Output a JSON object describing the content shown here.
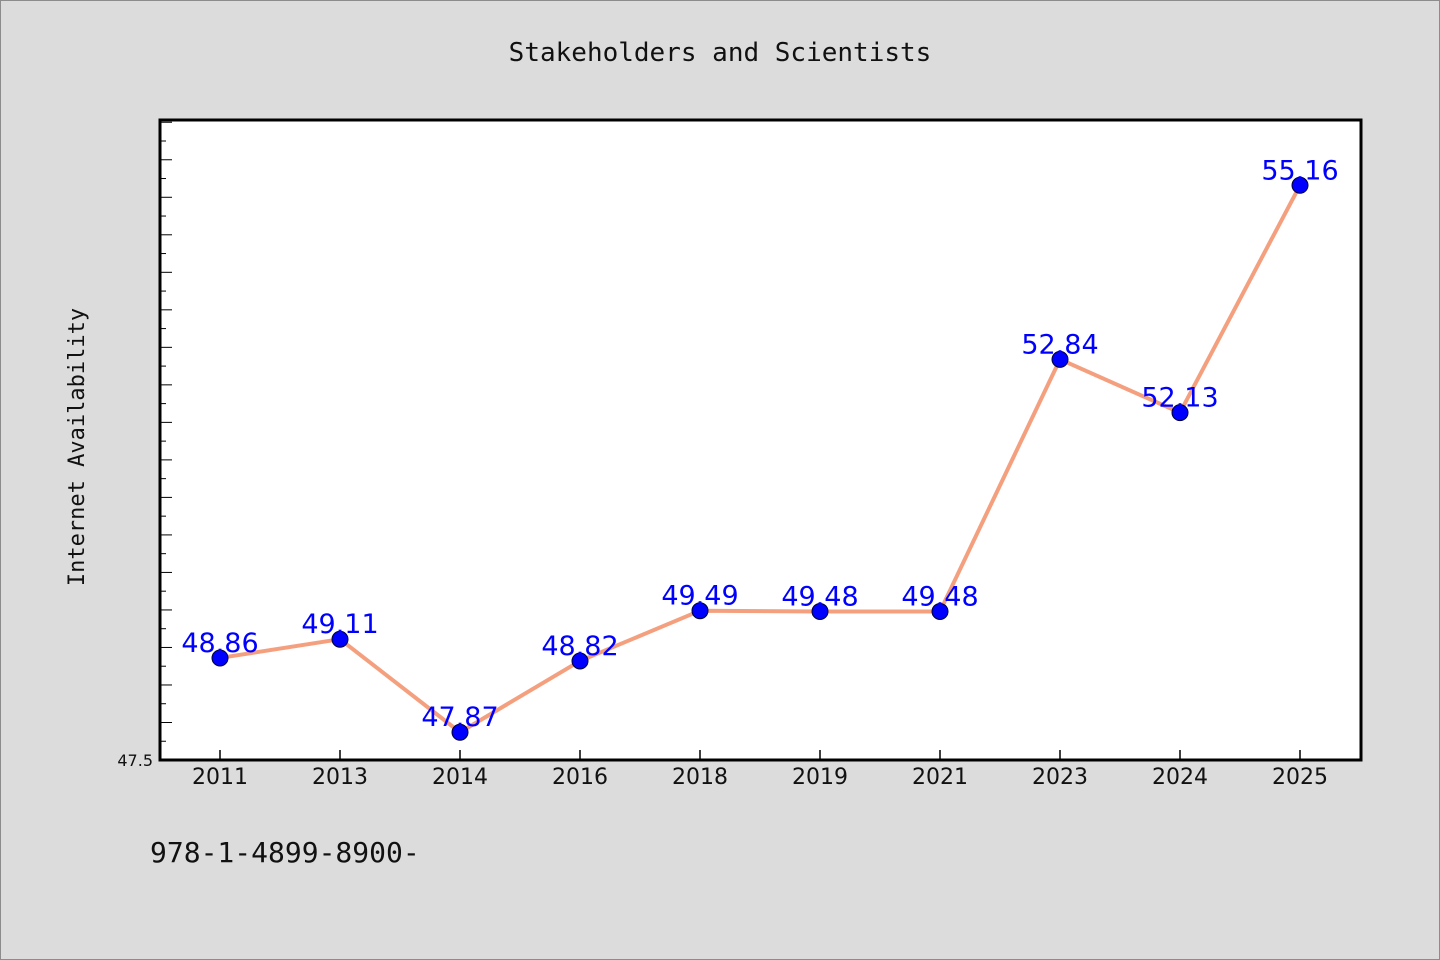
{
  "chart_data": {
    "type": "line",
    "title": "Stakeholders and Scientists",
    "xlabel": "",
    "ylabel": "Internet Availability",
    "categories": [
      "2011",
      "2013",
      "2014",
      "2016",
      "2018",
      "2019",
      "2021",
      "2023",
      "2024",
      "2025"
    ],
    "series": [
      {
        "values": [
          48.86,
          49.11,
          47.87,
          48.82,
          49.49,
          49.48,
          49.48,
          52.84,
          52.13,
          55.16
        ],
        "labels": [
          "48.86",
          "49.11",
          "47.87",
          "48.82",
          "49.49",
          "49.48",
          "49.48",
          "52.84",
          "52.13",
          "55.16"
        ]
      }
    ],
    "ylim": [
      47.5,
      56.03
    ],
    "yticks": [
      "47.5"
    ],
    "grid": false,
    "line_color": "#f4a07f",
    "marker_color": "#0000ff",
    "label_color": "#0000ff",
    "plot_background": "#ffffff",
    "background": "#dcdcdc"
  },
  "footer_text": "978-1-4899-8900-"
}
